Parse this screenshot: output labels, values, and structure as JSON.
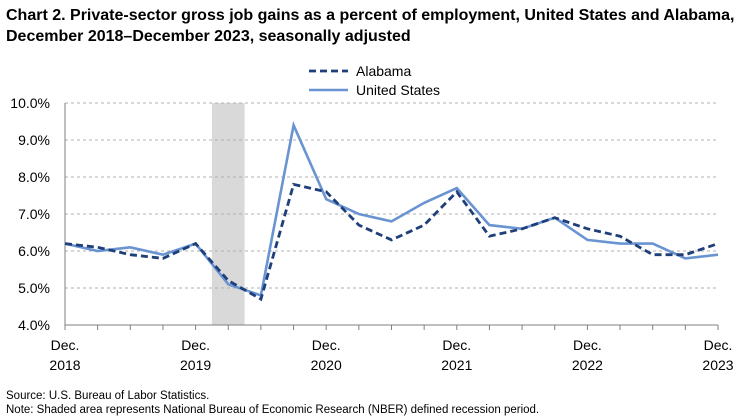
{
  "chart_data": {
    "type": "line",
    "title": "Chart 2. Private-sector gross job gains as a percent of employment, United States and Alabama, December 2018–December 2023, seasonally adjusted",
    "xlabel": "",
    "ylabel": "",
    "ylim": [
      4.0,
      10.0
    ],
    "yticks": [
      "4.0%",
      "5.0%",
      "6.0%",
      "7.0%",
      "8.0%",
      "9.0%",
      "10.0%"
    ],
    "x_tick_labels": [
      {
        "month": "Dec.",
        "year": "2018"
      },
      {
        "month": "Dec.",
        "year": "2019"
      },
      {
        "month": "Dec.",
        "year": "2020"
      },
      {
        "month": "Dec.",
        "year": "2021"
      },
      {
        "month": "Dec.",
        "year": "2022"
      },
      {
        "month": "Dec.",
        "year": "2023"
      }
    ],
    "x": [
      "Dec. 2018",
      "Mar. 2019",
      "Jun. 2019",
      "Sep. 2019",
      "Dec. 2019",
      "Mar. 2020",
      "Jun. 2020",
      "Sep. 2020",
      "Dec. 2020",
      "Mar. 2021",
      "Jun. 2021",
      "Sep. 2021",
      "Dec. 2021",
      "Mar. 2022",
      "Jun. 2022",
      "Sep. 2022",
      "Dec. 2022",
      "Mar. 2023",
      "Jun. 2023",
      "Sep. 2023",
      "Dec. 2023"
    ],
    "recession": {
      "start_index": 4.5,
      "end_index": 5.5
    },
    "series": [
      {
        "name": "Alabama",
        "color": "#1f3f7a",
        "dash": "dashed",
        "values": [
          6.2,
          6.1,
          5.9,
          5.8,
          6.2,
          5.2,
          4.7,
          7.8,
          7.6,
          6.7,
          6.3,
          6.7,
          7.6,
          6.4,
          6.6,
          6.9,
          6.6,
          6.4,
          5.9,
          5.9,
          6.2
        ]
      },
      {
        "name": "United States",
        "color": "#6a93d2",
        "dash": "solid",
        "values": [
          6.2,
          6.0,
          6.1,
          5.9,
          6.2,
          5.1,
          4.8,
          9.4,
          7.4,
          7.0,
          6.8,
          7.3,
          7.7,
          6.7,
          6.6,
          6.9,
          6.3,
          6.2,
          6.2,
          5.8,
          5.9
        ]
      }
    ],
    "grid": true,
    "legend": "top-center"
  },
  "notes": {
    "source": "Source: U.S. Bureau of Labor Statistics.",
    "shaded": "Note: Shaded area represents National Bureau of Economic Research (NBER) defined recession period."
  },
  "colors": {
    "grid": "#b0b0b0",
    "axis": "#7f7f7f",
    "recession_shade": "#d9d9d9"
  }
}
